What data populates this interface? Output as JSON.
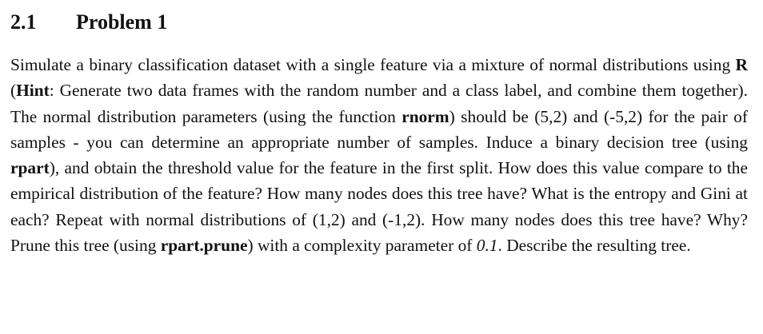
{
  "section": {
    "number": "2.1",
    "title": "Problem 1"
  },
  "paragraph": {
    "s1": "Simulate a binary classification dataset with a single feature via a mixture of normal distributions using ",
    "r_bold": "R",
    "s2": " (",
    "hint_bold": "Hint",
    "s3": ": Generate two data frames with the random number and a class label, and combine them together). The normal distribution parameters (using the function ",
    "rnorm_bold": "rnorm",
    "s4": ") should be (5,2) and (-5,2) for the pair of samples - you can determine an appropriate number of samples. Induce a binary decision tree (using ",
    "rpart_bold": "rpart",
    "s5": "), and obtain the threshold value for the feature in the first split. How does this value compare to the empirical distribution of the feature? How many nodes does this tree have? What is the entropy and Gini at each? Repeat with normal distributions of (1,2) and (-1,2). How many nodes does this tree have? Why? Prune this tree (using ",
    "rpart_prune_bold": "rpart.prune",
    "s6": ") with a complexity parameter of ",
    "cp_italic": "0.1",
    "s7": ". Describe the resulting tree."
  }
}
